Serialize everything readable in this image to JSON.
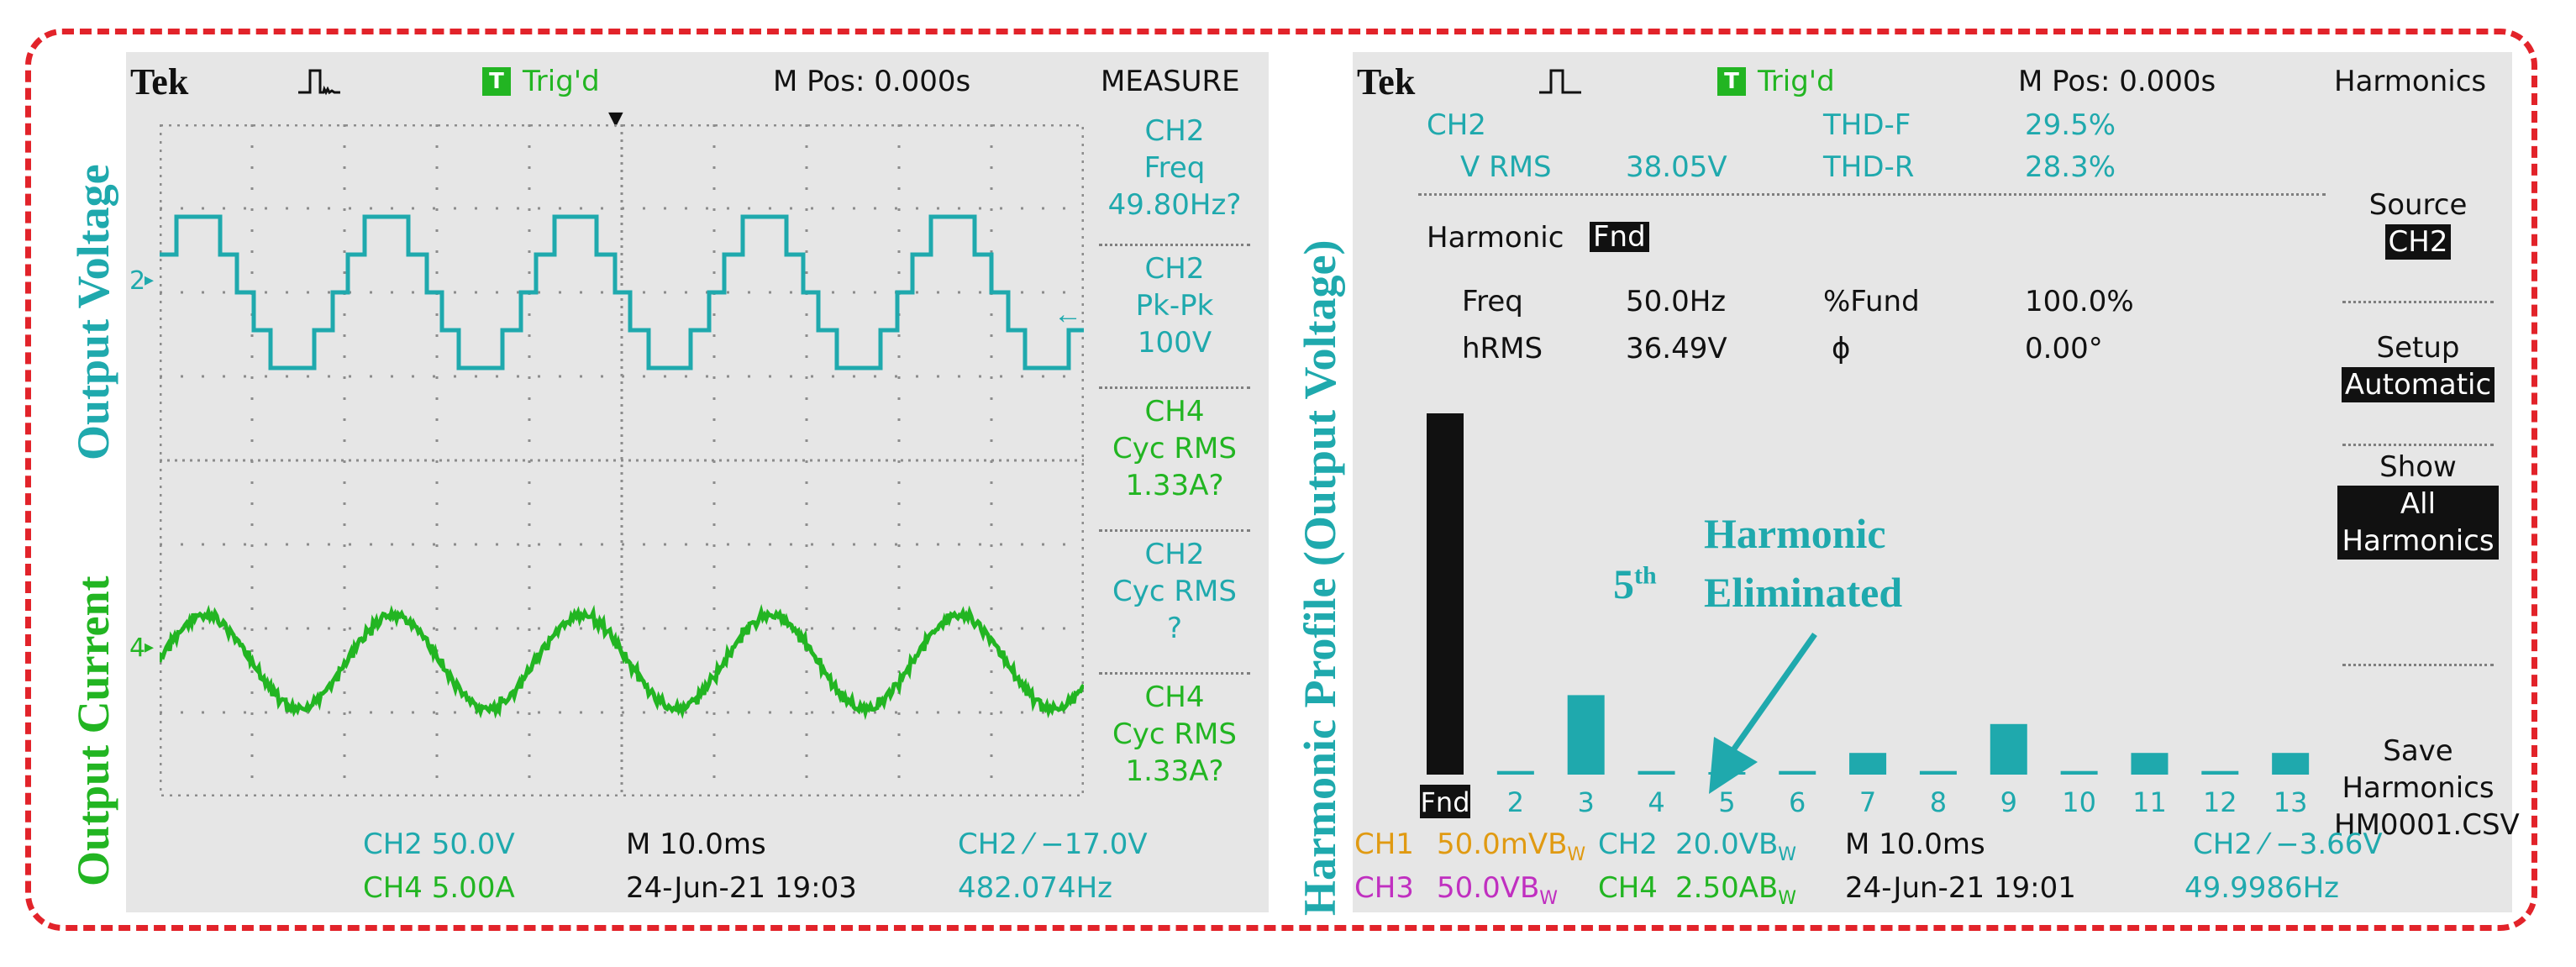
{
  "side_labels": {
    "left_top": "Output Voltage",
    "left_bottom": "Output Current",
    "middle": "Harmonic Profile (Output Voltage)"
  },
  "left_scope": {
    "brand": "Tek",
    "trigger_status": "Trig'd",
    "trigger_badge": "T",
    "m_pos": "M Pos: 0.000s",
    "menu_title": "MEASURE",
    "measurements": [
      {
        "ch": "CH2",
        "name": "Freq",
        "value": "49.80Hz?"
      },
      {
        "ch": "CH2",
        "name": "Pk-Pk",
        "value": "100V"
      },
      {
        "ch": "CH4",
        "name": "Cyc RMS",
        "value": "1.33A?"
      },
      {
        "ch": "CH2",
        "name": "Cyc RMS",
        "value": "?"
      },
      {
        "ch": "CH4",
        "name": "Cyc RMS",
        "value": "1.33A?"
      }
    ],
    "markers": {
      "ch2": "2",
      "ch4": "4"
    },
    "status": {
      "ch2_scale": "CH2  50.0V",
      "ch4_scale": "CH4  5.00A",
      "time_scale": "M 10.0ms",
      "datetime": "24-Jun-21 19:03",
      "trigger": "CH2 ⁄ −17.0V",
      "freq": "482.074Hz"
    },
    "colors": {
      "ch2": "#1fa9ad",
      "ch4": "#22b522",
      "grid": "#8c8c8c"
    }
  },
  "right_scope": {
    "brand": "Tek",
    "trigger_status": "Trig'd",
    "trigger_badge": "T",
    "m_pos": "M Pos: 0.000s",
    "menu_title": "Harmonics",
    "info": {
      "ch": "CH2",
      "vrms_label": "V RMS",
      "vrms_value": "38.05V",
      "thdf_label": "THD-F",
      "thdf_value": "29.5%",
      "thdr_label": "THD-R",
      "thdr_value": "28.3%",
      "harmonic_label": "Harmonic",
      "harmonic_value": "Fnd",
      "freq_label": "Freq",
      "freq_value": "50.0Hz",
      "fund_label": "%Fund",
      "fund_value": "100.0%",
      "hrms_label": "hRMS",
      "hrms_value": "36.49V",
      "phase_label": "ϕ",
      "phase_value": "0.00°"
    },
    "menu": {
      "source_label": "Source",
      "source_value": "CH2",
      "setup_label": "Setup",
      "setup_value": "Automatic",
      "show_label": "Show",
      "show_value_1": "All",
      "show_value_2": "Harmonics",
      "save_label_1": "Save",
      "save_label_2": "Harmonics",
      "save_file": "HM0001.CSV"
    },
    "annotation": {
      "order": "5",
      "sup": "th",
      "word1": "Harmonic",
      "word2": "Eliminated"
    },
    "status": {
      "ch1": "CH1",
      "ch1_scale": "50.0mVB",
      "ch2": "CH2",
      "ch2_scale": "20.0VB",
      "time_scale": "M 10.0ms",
      "trigger": "CH2 ⁄ −3.66V",
      "ch3": "CH3",
      "ch3_scale": "50.0VB",
      "ch4": "CH4",
      "ch4_scale": "2.50AB",
      "datetime": "24-Jun-21 19:01",
      "freq": "49.9986Hz",
      "bw_mark": "W"
    }
  },
  "chart_data": [
    {
      "type": "line",
      "description_source": "oscilloscope waveforms",
      "x_unit": "ms",
      "x_divisions": 10,
      "time_per_division_ms": 10,
      "y_divisions": 8,
      "grid": true,
      "series": [
        {
          "name": "CH2",
          "unit": "V",
          "volts_per_div": 50,
          "shape": "multilevel stepped sine",
          "x": [
            0,
            10,
            20,
            30,
            40,
            50,
            60,
            70,
            80,
            90,
            100
          ],
          "frequency_hz": 49.8,
          "pk_pk": 100
        },
        {
          "name": "CH4",
          "unit": "A",
          "amps_per_div": 5,
          "shape": "stepped sine",
          "x": [
            0,
            10,
            20,
            30,
            40,
            50,
            60,
            70,
            80,
            90,
            100
          ],
          "frequency_hz": 49.8,
          "cyc_rms": 1.33
        }
      ]
    },
    {
      "type": "bar",
      "categories": [
        "Fnd",
        "2",
        "3",
        "4",
        "5",
        "6",
        "7",
        "8",
        "9",
        "10",
        "11",
        "12",
        "13"
      ],
      "values": [
        100,
        1,
        22,
        1,
        0.5,
        1,
        6,
        1,
        14,
        1,
        6,
        1,
        6
      ],
      "value_unit": "%Fund",
      "ylim": [
        0,
        100
      ],
      "colors": {
        "fundamental": "#111111",
        "harmonics": "#1fa9ad"
      }
    }
  ]
}
